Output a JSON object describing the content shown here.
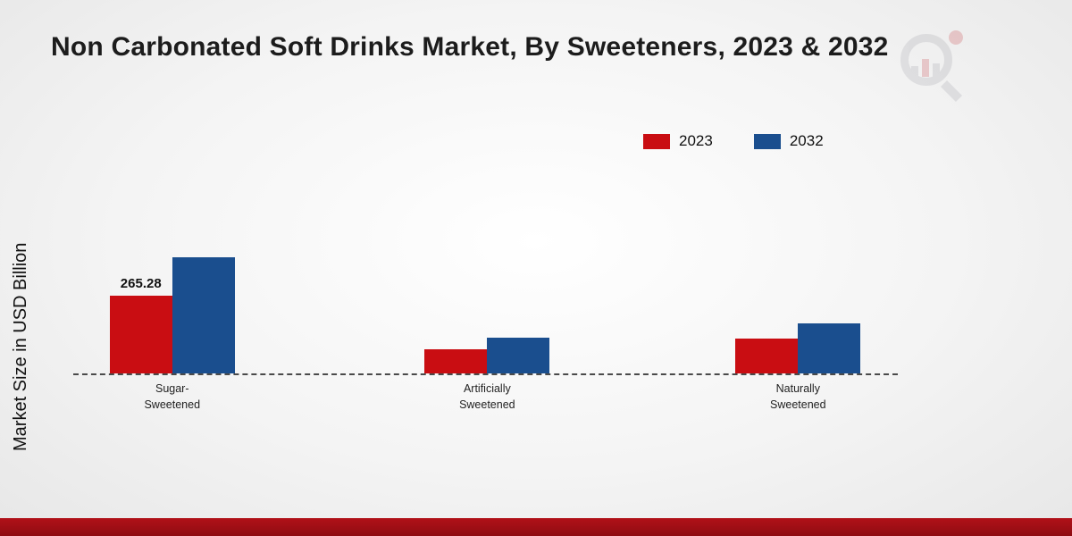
{
  "title": "Non Carbonated Soft Drinks Market, By Sweeteners, 2023 & 2032",
  "ylabel": "Market Size in USD Billion",
  "legend": {
    "items": [
      {
        "label": "2023",
        "color": "#c90d12"
      },
      {
        "label": "2032",
        "color": "#1a4e8e"
      }
    ]
  },
  "footer_bar": {
    "color": "#b11118"
  },
  "watermark": {
    "name": "brand-logo-watermark"
  },
  "chart_data": {
    "type": "bar",
    "title": "Non Carbonated Soft Drinks Market, By Sweeteners, 2023 & 2032",
    "xlabel": "",
    "ylabel": "Market Size in USD Billion",
    "categories": [
      "Sugar-Sweetened",
      "Artificially Sweetened",
      "Naturally Sweetened"
    ],
    "category_label_lines": [
      [
        "Sugar-",
        "Sweetened"
      ],
      [
        "Artificially",
        "Sweetened"
      ],
      [
        "Naturally",
        "Sweetened"
      ]
    ],
    "series": [
      {
        "name": "2023",
        "color": "#c90d12",
        "values": [
          265.28,
          82,
          118
        ]
      },
      {
        "name": "2032",
        "color": "#1a4e8e",
        "values": [
          396,
          122,
          170
        ]
      }
    ],
    "annotations": [
      {
        "series_index": 0,
        "category_index": 0,
        "text": "265.28"
      }
    ],
    "baseline": 0,
    "grid": "off",
    "axis_line_style": "dashed",
    "legend_position": "top-right"
  }
}
